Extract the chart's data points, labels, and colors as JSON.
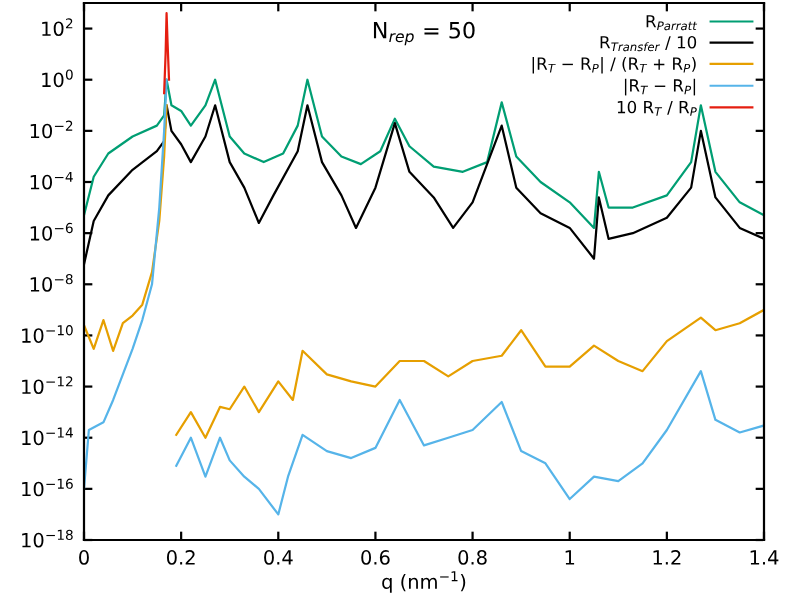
{
  "chart_data": {
    "type": "line",
    "xlabel": "q (nm$^{−1}$)",
    "annotations": [
      "N$_{rep}$ = 50"
    ],
    "xlim": [
      0,
      1.4
    ],
    "xticks": [
      0,
      0.2,
      0.4,
      0.6,
      0.8,
      1,
      1.2,
      1.4
    ],
    "ylim": [
      1e-18,
      1000
    ],
    "log": "y",
    "yticks": [
      {
        "value": 1e-18,
        "label": "10$^{−18}$"
      },
      {
        "value": 1e-16,
        "label": "10$^{−16}$"
      },
      {
        "value": 1e-14,
        "label": "10$^{−14}$"
      },
      {
        "value": 1e-12,
        "label": "10$^{−12}$"
      },
      {
        "value": 1e-10,
        "label": "10$^{−10}$"
      },
      {
        "value": 1e-08,
        "label": "10$^{−8}$"
      },
      {
        "value": 1e-06,
        "label": "10$^{−6}$"
      },
      {
        "value": 0.0001,
        "label": "10$^{−4}$"
      },
      {
        "value": 0.01,
        "label": "10$^{−2}$"
      },
      {
        "value": 1,
        "label": "10$^{0}$"
      },
      {
        "value": 100,
        "label": "10$^{2}$"
      }
    ],
    "grid": false,
    "legend": "top right",
    "series": [
      {
        "name": "R$_{Parratt}$",
        "color": "#009e73",
        "x": [
          0,
          0.02,
          0.05,
          0.1,
          0.15,
          0.165,
          0.17,
          0.18,
          0.2,
          0.22,
          0.25,
          0.27,
          0.3,
          0.33,
          0.37,
          0.41,
          0.44,
          0.46,
          0.49,
          0.53,
          0.57,
          0.61,
          0.64,
          0.67,
          0.72,
          0.78,
          0.83,
          0.86,
          0.89,
          0.94,
          1.0,
          1.05,
          1.06,
          1.08,
          1.13,
          1.2,
          1.25,
          1.27,
          1.3,
          1.35,
          1.4
        ],
        "values": [
          5e-06,
          0.00016,
          0.0013,
          0.006,
          0.016,
          0.04,
          1,
          0.1,
          0.06,
          0.016,
          0.1,
          1,
          0.006,
          0.0013,
          0.0006,
          0.0013,
          0.016,
          1,
          0.006,
          0.001,
          0.0005,
          0.0016,
          0.03,
          0.0025,
          0.0004,
          0.00025,
          0.0006,
          0.13,
          0.001,
          0.0001,
          1.6e-05,
          1.6e-06,
          0.00025,
          1e-05,
          1e-05,
          3e-05,
          0.0006,
          0.1,
          0.00025,
          1.6e-05,
          5e-06
        ]
      },
      {
        "name": "R$_{Transfer}$ / 10",
        "color": "#000000",
        "x": [
          0,
          0.02,
          0.05,
          0.1,
          0.15,
          0.165,
          0.17,
          0.18,
          0.2,
          0.22,
          0.25,
          0.27,
          0.3,
          0.33,
          0.36,
          0.39,
          0.44,
          0.46,
          0.49,
          0.53,
          0.56,
          0.6,
          0.64,
          0.67,
          0.72,
          0.76,
          0.8,
          0.86,
          0.89,
          0.94,
          1.0,
          1.05,
          1.06,
          1.08,
          1.13,
          1.2,
          1.25,
          1.27,
          1.3,
          1.35,
          1.4
        ],
        "values": [
          6e-08,
          3e-06,
          3e-05,
          0.0003,
          0.0016,
          0.004,
          0.1,
          0.01,
          0.003,
          0.0006,
          0.006,
          0.1,
          0.0006,
          6e-05,
          2.5e-06,
          3e-05,
          0.0016,
          0.1,
          0.0006,
          3e-05,
          1.6e-06,
          6e-05,
          0.02,
          0.00025,
          2.5e-05,
          1.6e-06,
          1.6e-05,
          0.016,
          6e-05,
          6e-06,
          1.6e-06,
          1e-07,
          2.5e-05,
          6e-07,
          1e-06,
          4e-06,
          6e-05,
          0.01,
          2.5e-05,
          1.6e-06,
          6e-07
        ]
      },
      {
        "name": "|R$_{T}$ − R$_{P}$| / (R$_{T}$ + R$_{P}$)",
        "color": "#e69f00",
        "x": [
          0,
          0.02,
          0.04,
          0.06,
          0.08,
          0.1,
          0.12,
          0.14,
          0.155,
          0.165,
          0.17,
          0.175,
          0.19,
          0.22,
          0.25,
          0.28,
          0.3,
          0.33,
          0.36,
          0.4,
          0.43,
          0.45,
          0.5,
          0.55,
          0.6,
          0.65,
          0.7,
          0.75,
          0.8,
          0.86,
          0.9,
          0.95,
          1.0,
          1.05,
          1.1,
          1.15,
          1.2,
          1.27,
          1.3,
          1.35,
          1.4
        ],
        "values": [
          2.5e-10,
          3e-11,
          4e-10,
          2.5e-11,
          3e-10,
          6e-10,
          1.6e-09,
          3e-08,
          3e-06,
          0.001,
          0.1,
          null,
          1.3e-14,
          1e-13,
          1e-14,
          1.6e-13,
          1.3e-13,
          1e-12,
          1e-13,
          1.6e-12,
          3e-13,
          2.5e-11,
          3e-12,
          1.6e-12,
          1e-12,
          1e-11,
          1e-11,
          2.5e-12,
          1e-11,
          1.6e-11,
          1.6e-10,
          6e-12,
          6e-12,
          4e-11,
          1e-11,
          4e-12,
          6e-11,
          5e-10,
          1.6e-10,
          3e-10,
          1e-09
        ]
      },
      {
        "name": "|R$_{T}$ − R$_{P}$|",
        "color": "#56b4e9",
        "x": [
          0,
          0.01,
          0.04,
          0.06,
          0.08,
          0.1,
          0.12,
          0.14,
          0.155,
          0.165,
          0.17,
          0.175,
          0.19,
          0.22,
          0.25,
          0.28,
          0.3,
          0.33,
          0.36,
          0.4,
          0.42,
          0.45,
          0.5,
          0.55,
          0.6,
          0.65,
          0.7,
          0.75,
          0.8,
          0.86,
          0.9,
          0.95,
          1.0,
          1.05,
          1.1,
          1.15,
          1.2,
          1.27,
          1.3,
          1.35,
          1.4
        ],
        "values": [
          1e-16,
          2e-14,
          4e-14,
          3e-13,
          3e-12,
          3e-11,
          4e-10,
          1e-08,
          1e-05,
          0.01,
          1,
          null,
          8e-16,
          1e-14,
          3e-16,
          1e-14,
          1.3e-15,
          3e-16,
          1e-16,
          1e-17,
          3e-16,
          1.3e-14,
          3e-15,
          1.6e-15,
          4e-15,
          3e-13,
          5e-15,
          1e-14,
          2e-14,
          2.5e-13,
          3e-15,
          1e-15,
          4e-17,
          3e-16,
          2e-16,
          1e-15,
          2e-14,
          4e-12,
          5e-14,
          1.6e-14,
          3e-14
        ]
      },
      {
        "name": "10 R$_{T}$ / R$_{P}$",
        "color": "#e51e10",
        "x": [
          0.165,
          0.168,
          0.17,
          0.172,
          0.175
        ],
        "values": [
          0.3,
          10,
          400,
          30,
          1
        ]
      }
    ]
  }
}
